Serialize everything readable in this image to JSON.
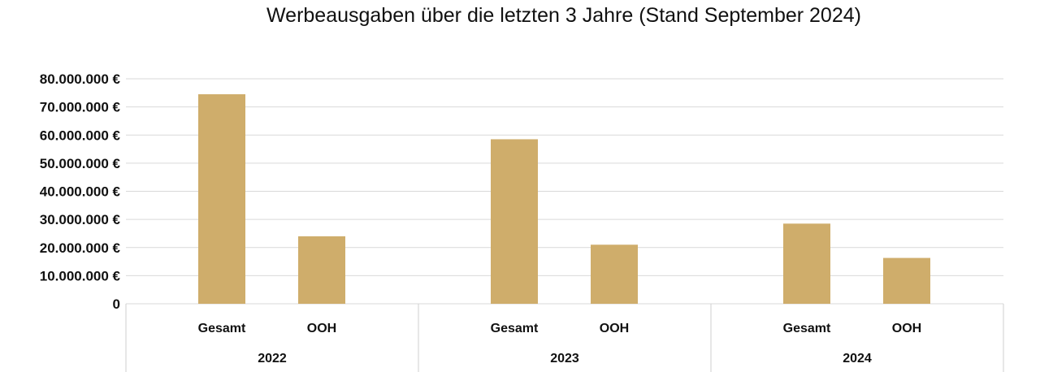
{
  "chart_data": {
    "type": "bar",
    "title": "Werbeausgaben über die letzten 3 Jahre (Stand September 2024)",
    "xlabel": "",
    "ylabel": "",
    "ylim": [
      0,
      80000000
    ],
    "y_ticks": [
      0,
      10000000,
      20000000,
      30000000,
      40000000,
      50000000,
      60000000,
      70000000,
      80000000
    ],
    "y_tick_labels": [
      "0",
      "10.000.000 €",
      "20.000.000 €",
      "30.000.000 €",
      "40.000.000 €",
      "50.000.000 €",
      "60.000.000 €",
      "70.000.000 €",
      "80.000.000 €"
    ],
    "groups": [
      {
        "label": "2022",
        "bars": [
          {
            "label": "Gesamt",
            "value": 74500000
          },
          {
            "label": "OOH",
            "value": 24000000
          }
        ]
      },
      {
        "label": "2023",
        "bars": [
          {
            "label": "Gesamt",
            "value": 58500000
          },
          {
            "label": "OOH",
            "value": 21000000
          }
        ]
      },
      {
        "label": "2024",
        "bars": [
          {
            "label": "Gesamt",
            "value": 28500000
          },
          {
            "label": "OOH",
            "value": 16300000
          }
        ]
      }
    ],
    "bar_color": "#cfad6b",
    "grid": true,
    "legend": false
  }
}
